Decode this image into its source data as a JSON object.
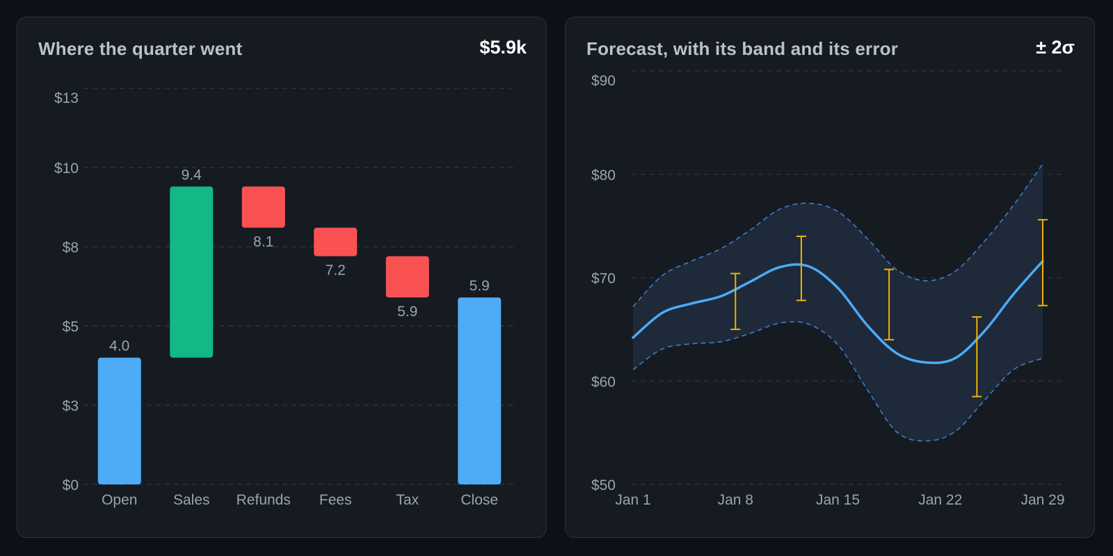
{
  "charts": {
    "waterfall": {
      "title": "Where the quarter went",
      "badge": "$5.9k"
    },
    "forecast": {
      "title": "Forecast, with its band and its error",
      "badge": "± 2σ"
    }
  },
  "colors": {
    "total": "#4dabf7",
    "increase": "#12b886",
    "decrease": "#fa5252",
    "forecast_line": "#4dabf7",
    "band_fill": "#1e2a3a",
    "band_edge": "#3b7fc4",
    "error_bar": "#f0b400",
    "grid": "#30363d"
  },
  "chart_data": [
    {
      "type": "bar",
      "subtype": "waterfall",
      "title": "Where the quarter went",
      "summary": "$5.9k",
      "categories": [
        "Open",
        "Sales",
        "Refunds",
        "Fees",
        "Tax",
        "Close"
      ],
      "bars": [
        {
          "category": "Open",
          "kind": "total",
          "start": 0,
          "end": 4.0,
          "label": "4.0"
        },
        {
          "category": "Sales",
          "kind": "increase",
          "start": 4.0,
          "end": 9.4,
          "label": "9.4"
        },
        {
          "category": "Refunds",
          "kind": "decrease",
          "start": 9.4,
          "end": 8.1,
          "label": "8.1"
        },
        {
          "category": "Fees",
          "kind": "decrease",
          "start": 8.1,
          "end": 7.2,
          "label": "7.2"
        },
        {
          "category": "Tax",
          "kind": "decrease",
          "start": 7.2,
          "end": 5.9,
          "label": "5.9"
        },
        {
          "category": "Close",
          "kind": "total",
          "start": 0,
          "end": 5.9,
          "label": "5.9"
        }
      ],
      "yticks": [
        {
          "value": 0,
          "label": "$0"
        },
        {
          "value": 2.5,
          "label": "$3"
        },
        {
          "value": 5,
          "label": "$5"
        },
        {
          "value": 7.5,
          "label": "$8"
        },
        {
          "value": 10,
          "label": "$10"
        },
        {
          "value": 12.5,
          "label": "$13"
        }
      ],
      "ylim": [
        0,
        12.5
      ],
      "grid": true
    },
    {
      "type": "line",
      "title": "Forecast, with its band and its error",
      "summary": "± 2σ",
      "x": [
        1,
        3,
        5,
        7,
        9,
        11,
        13,
        15,
        17,
        19,
        21,
        23,
        25,
        27,
        29
      ],
      "series": [
        {
          "role": "forecast",
          "values": [
            64.2,
            66.6,
            67.5,
            68.2,
            69.6,
            71.0,
            71.1,
            69.0,
            65.4,
            62.7,
            61.8,
            62.2,
            64.8,
            68.4,
            71.6
          ]
        },
        {
          "role": "upper",
          "values": [
            67.2,
            70.2,
            71.6,
            72.8,
            74.6,
            76.6,
            77.2,
            76.4,
            73.8,
            70.8,
            69.7,
            70.6,
            73.5,
            77.0,
            81.0
          ]
        },
        {
          "role": "lower",
          "values": [
            61.1,
            63.1,
            63.6,
            63.8,
            64.6,
            65.6,
            65.5,
            63.5,
            59.2,
            55.1,
            54.2,
            55.1,
            58.1,
            61.1,
            62.2
          ]
        }
      ],
      "error_bars": [
        {
          "x": 8,
          "low": 65.0,
          "high": 70.4
        },
        {
          "x": 12.5,
          "low": 67.8,
          "high": 74.0
        },
        {
          "x": 18.5,
          "low": 64.0,
          "high": 70.8
        },
        {
          "x": 24.5,
          "low": 58.5,
          "high": 66.2
        },
        {
          "x": 29,
          "low": 67.3,
          "high": 75.6
        }
      ],
      "xticks": [
        {
          "value": 1,
          "label": "Jan 1"
        },
        {
          "value": 8,
          "label": "Jan 8"
        },
        {
          "value": 15,
          "label": "Jan 15"
        },
        {
          "value": 22,
          "label": "Jan 22"
        },
        {
          "value": 29,
          "label": "Jan 29"
        }
      ],
      "yticks": [
        {
          "value": 50,
          "label": "$50"
        },
        {
          "value": 60,
          "label": "$60"
        },
        {
          "value": 70,
          "label": "$70"
        },
        {
          "value": 80,
          "label": "$80"
        },
        {
          "value": 90,
          "label": "$90"
        }
      ],
      "xlim": [
        1,
        29
      ],
      "ylim": [
        50,
        90
      ],
      "grid": true
    }
  ]
}
